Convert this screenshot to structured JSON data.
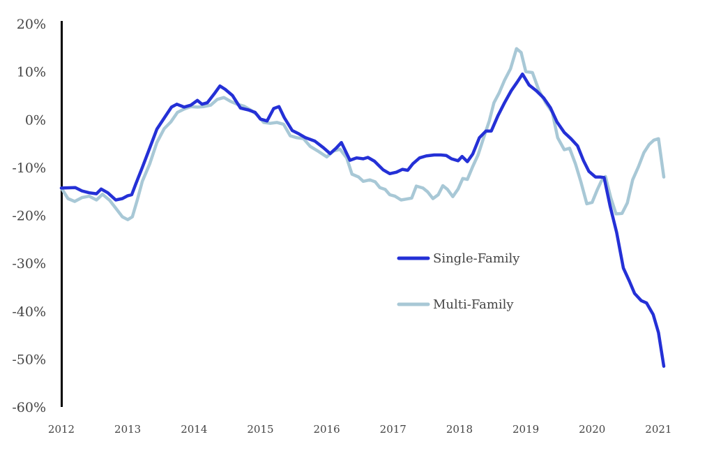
{
  "chart_data": {
    "type": "line",
    "title": "",
    "xlabel": "",
    "ylabel": "",
    "xlim": [
      2012,
      2021
    ],
    "ylim": [
      -60,
      20
    ],
    "x_ticks": [
      "2012",
      "2013",
      "2014",
      "2015",
      "2016",
      "2017",
      "2018",
      "2019",
      "2020",
      "2021"
    ],
    "y_ticks": [
      "20%",
      "10%",
      "0%",
      "-10%",
      "-20%",
      "-30%",
      "-40%",
      "-50%",
      "-60%"
    ],
    "y_tick_values": [
      20,
      10,
      0,
      -10,
      -20,
      -30,
      -40,
      -50,
      -60
    ],
    "grid": false,
    "legend_position": "center-right",
    "series": [
      {
        "name": "Single-Family",
        "color": "#2430d6",
        "points": [
          [
            2012.0,
            -14.3
          ],
          [
            2012.21,
            -14.2
          ],
          [
            2012.31,
            -14.9
          ],
          [
            2012.42,
            -15.3
          ],
          [
            2012.53,
            -15.5
          ],
          [
            2012.6,
            -14.5
          ],
          [
            2012.7,
            -15.3
          ],
          [
            2012.82,
            -16.8
          ],
          [
            2012.92,
            -16.5
          ],
          [
            2013.0,
            -15.9
          ],
          [
            2013.06,
            -15.7
          ],
          [
            2013.12,
            -13.5
          ],
          [
            2013.22,
            -10.0
          ],
          [
            2013.33,
            -6.0
          ],
          [
            2013.44,
            -2.0
          ],
          [
            2013.56,
            0.5
          ],
          [
            2013.66,
            2.6
          ],
          [
            2013.74,
            3.2
          ],
          [
            2013.85,
            2.6
          ],
          [
            2013.95,
            3.0
          ],
          [
            2014.05,
            4.0
          ],
          [
            2014.12,
            3.2
          ],
          [
            2014.2,
            3.5
          ],
          [
            2014.3,
            5.3
          ],
          [
            2014.39,
            7.0
          ],
          [
            2014.47,
            6.3
          ],
          [
            2014.58,
            5.0
          ],
          [
            2014.7,
            2.4
          ],
          [
            2014.82,
            2.0
          ],
          [
            2014.92,
            1.5
          ],
          [
            2015.0,
            0.1
          ],
          [
            2015.1,
            -0.3
          ],
          [
            2015.2,
            2.3
          ],
          [
            2015.28,
            2.7
          ],
          [
            2015.36,
            0.4
          ],
          [
            2015.48,
            -2.3
          ],
          [
            2015.58,
            -3.0
          ],
          [
            2015.68,
            -3.8
          ],
          [
            2015.82,
            -4.5
          ],
          [
            2015.95,
            -5.9
          ],
          [
            2016.05,
            -7.1
          ],
          [
            2016.14,
            -6.0
          ],
          [
            2016.22,
            -4.8
          ],
          [
            2016.35,
            -8.5
          ],
          [
            2016.45,
            -8.0
          ],
          [
            2016.55,
            -8.2
          ],
          [
            2016.62,
            -7.9
          ],
          [
            2016.72,
            -8.7
          ],
          [
            2016.85,
            -10.5
          ],
          [
            2016.95,
            -11.3
          ],
          [
            2017.05,
            -11.0
          ],
          [
            2017.14,
            -10.4
          ],
          [
            2017.22,
            -10.6
          ],
          [
            2017.3,
            -9.2
          ],
          [
            2017.4,
            -8.0
          ],
          [
            2017.5,
            -7.6
          ],
          [
            2017.62,
            -7.4
          ],
          [
            2017.72,
            -7.4
          ],
          [
            2017.8,
            -7.5
          ],
          [
            2017.88,
            -8.2
          ],
          [
            2017.98,
            -8.6
          ],
          [
            2018.04,
            -7.7
          ],
          [
            2018.12,
            -8.8
          ],
          [
            2018.2,
            -7.2
          ],
          [
            2018.3,
            -3.8
          ],
          [
            2018.4,
            -2.4
          ],
          [
            2018.48,
            -2.4
          ],
          [
            2018.58,
            0.8
          ],
          [
            2018.68,
            3.5
          ],
          [
            2018.78,
            6.0
          ],
          [
            2018.87,
            7.8
          ],
          [
            2018.95,
            9.5
          ],
          [
            2019.05,
            7.2
          ],
          [
            2019.16,
            6.0
          ],
          [
            2019.27,
            4.5
          ],
          [
            2019.37,
            2.5
          ],
          [
            2019.47,
            -0.5
          ],
          [
            2019.58,
            -2.7
          ],
          [
            2019.68,
            -4.0
          ],
          [
            2019.78,
            -5.5
          ],
          [
            2019.87,
            -8.6
          ],
          [
            2019.95,
            -10.8
          ],
          [
            2020.05,
            -12.0
          ],
          [
            2020.12,
            -12.0
          ],
          [
            2020.18,
            -12.1
          ],
          [
            2020.27,
            -18.0
          ],
          [
            2020.37,
            -23.6
          ],
          [
            2020.47,
            -31.0
          ],
          [
            2020.56,
            -33.7
          ],
          [
            2020.64,
            -36.3
          ],
          [
            2020.74,
            -37.8
          ],
          [
            2020.82,
            -38.3
          ],
          [
            2020.92,
            -40.7
          ],
          [
            2021.0,
            -44.5
          ],
          [
            2021.08,
            -51.5
          ]
        ]
      },
      {
        "name": "Multi-Family",
        "color": "#a8c8d6",
        "points": [
          [
            2012.0,
            -14.3
          ],
          [
            2012.1,
            -16.5
          ],
          [
            2012.2,
            -17.1
          ],
          [
            2012.31,
            -16.3
          ],
          [
            2012.42,
            -16.0
          ],
          [
            2012.53,
            -16.8
          ],
          [
            2012.62,
            -15.6
          ],
          [
            2012.73,
            -16.9
          ],
          [
            2012.82,
            -18.5
          ],
          [
            2012.92,
            -20.3
          ],
          [
            2013.0,
            -20.9
          ],
          [
            2013.07,
            -20.3
          ],
          [
            2013.14,
            -17.0
          ],
          [
            2013.22,
            -12.9
          ],
          [
            2013.33,
            -9.3
          ],
          [
            2013.44,
            -4.8
          ],
          [
            2013.55,
            -1.9
          ],
          [
            2013.65,
            -0.5
          ],
          [
            2013.75,
            1.5
          ],
          [
            2013.85,
            2.2
          ],
          [
            2013.95,
            2.7
          ],
          [
            2014.05,
            2.6
          ],
          [
            2014.15,
            2.7
          ],
          [
            2014.25,
            3.0
          ],
          [
            2014.35,
            4.2
          ],
          [
            2014.45,
            4.6
          ],
          [
            2014.55,
            3.8
          ],
          [
            2014.65,
            3.2
          ],
          [
            2014.75,
            2.8
          ],
          [
            2014.85,
            2.0
          ],
          [
            2014.95,
            1.0
          ],
          [
            2015.05,
            -0.6
          ],
          [
            2015.15,
            -0.8
          ],
          [
            2015.25,
            -0.6
          ],
          [
            2015.35,
            -1.0
          ],
          [
            2015.45,
            -3.4
          ],
          [
            2015.55,
            -3.8
          ],
          [
            2015.65,
            -4.0
          ],
          [
            2015.75,
            -5.6
          ],
          [
            2015.88,
            -6.7
          ],
          [
            2016.0,
            -7.8
          ],
          [
            2016.1,
            -6.6
          ],
          [
            2016.2,
            -6.2
          ],
          [
            2016.3,
            -8.0
          ],
          [
            2016.38,
            -11.4
          ],
          [
            2016.48,
            -12.0
          ],
          [
            2016.55,
            -12.9
          ],
          [
            2016.65,
            -12.6
          ],
          [
            2016.73,
            -13.0
          ],
          [
            2016.8,
            -14.2
          ],
          [
            2016.88,
            -14.6
          ],
          [
            2016.95,
            -15.7
          ],
          [
            2017.03,
            -16.0
          ],
          [
            2017.12,
            -16.8
          ],
          [
            2017.2,
            -16.6
          ],
          [
            2017.28,
            -16.4
          ],
          [
            2017.35,
            -13.9
          ],
          [
            2017.45,
            -14.3
          ],
          [
            2017.52,
            -15.1
          ],
          [
            2017.6,
            -16.5
          ],
          [
            2017.68,
            -15.7
          ],
          [
            2017.75,
            -13.8
          ],
          [
            2017.82,
            -14.6
          ],
          [
            2017.9,
            -16.1
          ],
          [
            2017.98,
            -14.5
          ],
          [
            2018.05,
            -12.3
          ],
          [
            2018.12,
            -12.5
          ],
          [
            2018.2,
            -9.8
          ],
          [
            2018.28,
            -7.4
          ],
          [
            2018.36,
            -4.0
          ],
          [
            2018.45,
            -0.3
          ],
          [
            2018.52,
            3.5
          ],
          [
            2018.6,
            5.6
          ],
          [
            2018.68,
            8.2
          ],
          [
            2018.77,
            10.6
          ],
          [
            2018.86,
            14.8
          ],
          [
            2018.93,
            14.0
          ],
          [
            2019.0,
            10.0
          ],
          [
            2019.1,
            9.8
          ],
          [
            2019.2,
            6.0
          ],
          [
            2019.3,
            3.5
          ],
          [
            2019.4,
            1.5
          ],
          [
            2019.48,
            -3.8
          ],
          [
            2019.58,
            -6.3
          ],
          [
            2019.66,
            -6.0
          ],
          [
            2019.75,
            -9.3
          ],
          [
            2019.83,
            -13.0
          ],
          [
            2019.92,
            -17.6
          ],
          [
            2020.0,
            -17.3
          ],
          [
            2020.08,
            -14.6
          ],
          [
            2020.14,
            -12.8
          ],
          [
            2020.2,
            -11.9
          ],
          [
            2020.28,
            -16.3
          ],
          [
            2020.36,
            -19.7
          ],
          [
            2020.45,
            -19.6
          ],
          [
            2020.53,
            -17.4
          ],
          [
            2020.61,
            -12.6
          ],
          [
            2020.7,
            -9.8
          ],
          [
            2020.78,
            -6.9
          ],
          [
            2020.86,
            -5.2
          ],
          [
            2020.93,
            -4.3
          ],
          [
            2021.0,
            -4.0
          ],
          [
            2021.08,
            -12.0
          ]
        ]
      }
    ]
  }
}
